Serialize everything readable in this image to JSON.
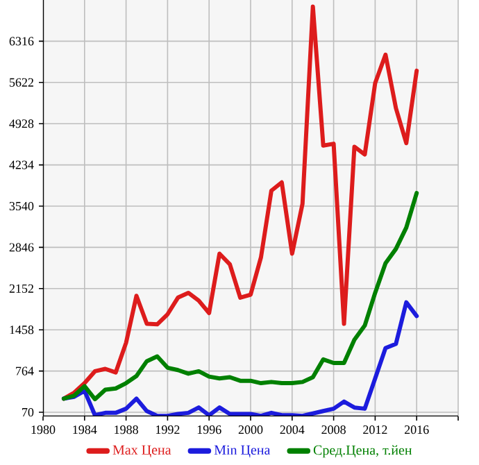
{
  "chart_data": {
    "type": "line",
    "x": [
      1982,
      1983,
      1984,
      1985,
      1986,
      1987,
      1988,
      1989,
      1990,
      1991,
      1992,
      1993,
      1994,
      1995,
      1996,
      1997,
      1998,
      1999,
      2000,
      2001,
      2002,
      2003,
      2004,
      2005,
      2006,
      2007,
      2008,
      2009,
      2010,
      2011,
      2012,
      2013,
      2014,
      2015,
      2016
    ],
    "series": [
      {
        "name": "Max Цена",
        "color": "#dd1c1c",
        "values": [
          300,
          400,
          560,
          760,
          800,
          740,
          1240,
          2030,
          1560,
          1550,
          1720,
          2000,
          2080,
          1950,
          1740,
          2740,
          2560,
          2000,
          2050,
          2680,
          3800,
          3940,
          2740,
          3580,
          6900,
          4560,
          4590,
          1560,
          4540,
          4410,
          5610,
          6090,
          5190,
          4600,
          5820
        ]
      },
      {
        "name": "Min Цена",
        "color": "#1c1cdd",
        "values": [
          300,
          330,
          430,
          20,
          60,
          60,
          130,
          300,
          90,
          10,
          10,
          40,
          60,
          150,
          20,
          150,
          40,
          40,
          40,
          10,
          60,
          20,
          20,
          10,
          50,
          90,
          130,
          250,
          150,
          130,
          640,
          1150,
          1220,
          1920,
          1690
        ]
      },
      {
        "name": "Сред.Цена, т.йен",
        "color": "#008000",
        "values": [
          300,
          350,
          510,
          290,
          450,
          470,
          560,
          680,
          930,
          1010,
          820,
          780,
          720,
          760,
          670,
          640,
          660,
          600,
          600,
          560,
          580,
          560,
          560,
          580,
          660,
          960,
          900,
          900,
          1290,
          1530,
          2080,
          2580,
          2820,
          3180,
          3760
        ]
      }
    ],
    "xlim": [
      1980,
      2020
    ],
    "ylim": [
      0,
      7010
    ],
    "xticks": [
      1980,
      1984,
      1988,
      1992,
      1996,
      2000,
      2004,
      2008,
      2012,
      2016,
      {
        "value": 2020,
        "label": null
      }
    ],
    "yticks": [
      70,
      764,
      1458,
      2152,
      2846,
      3540,
      4234,
      4928,
      5622,
      6316
    ],
    "grid": true,
    "legend": "bottom",
    "marker": "none",
    "line_style": "solid"
  }
}
